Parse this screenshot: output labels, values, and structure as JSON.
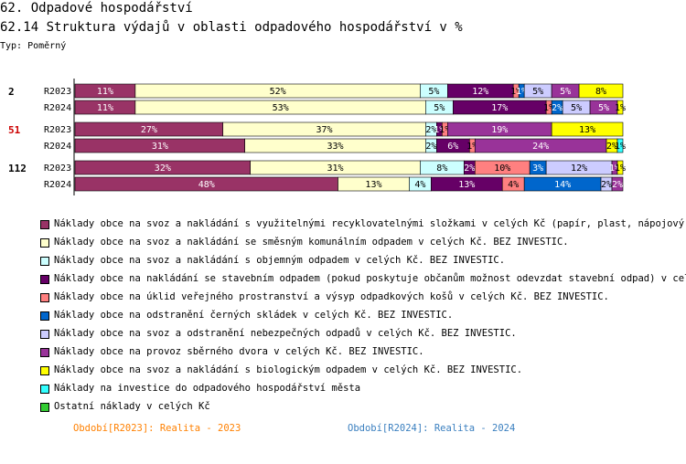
{
  "header": {
    "title": "62. Odpadové hospodářství",
    "subtitle": "62.14 Struktura výdajů v oblasti odpadového hospodářství v %",
    "type_label": "Typ: Poměrný"
  },
  "footer": {
    "period1": "Období[R2023]: Realita - 2023",
    "period2": "Období[R2024]: Realita - 2024",
    "period1_color": "#ff8000",
    "period2_color": "#3a7fbf"
  },
  "chart_data": {
    "type": "bar",
    "orientation": "horizontal",
    "stacked": "percent",
    "xlim": [
      0,
      100
    ],
    "legend_placement": "bottom",
    "groups": [
      {
        "label": "2",
        "label_color": "#000000",
        "rows": [
          {
            "label": "R2023",
            "values": [
              11,
              52,
              5,
              12,
              1,
              1,
              5,
              5,
              8,
              0,
              0
            ]
          },
          {
            "label": "R2024",
            "values": [
              11,
              53,
              5,
              17,
              1,
              2,
              5,
              5,
              1,
              0,
              0
            ]
          }
        ]
      },
      {
        "label": "51",
        "label_color": "#cc0000",
        "rows": [
          {
            "label": "R2023",
            "values": [
              27,
              37,
              2,
              1,
              1,
              0,
              0,
              19,
              13,
              0,
              0
            ]
          },
          {
            "label": "R2024",
            "values": [
              31,
              33,
              2,
              6,
              1,
              0,
              0,
              24,
              2,
              1,
              0
            ]
          }
        ]
      },
      {
        "label": "112",
        "label_color": "#000000",
        "rows": [
          {
            "label": "R2023",
            "values": [
              32,
              31,
              8,
              2,
              10,
              3,
              12,
              1,
              1,
              0,
              0
            ]
          },
          {
            "label": "R2024",
            "values": [
              48,
              13,
              4,
              13,
              4,
              14,
              2,
              2,
              0,
              0,
              0
            ]
          }
        ]
      }
    ],
    "series": [
      {
        "name": "Náklady obce na svoz a nakládání s využitelnými recyklovatelnými složkami v celých Kč (papír, plast, nápojový karto",
        "color": "#993366"
      },
      {
        "name": "Náklady obce na svoz a nakládání se směsným komunálním odpadem v celých Kč.  BEZ INVESTIC.",
        "color": "#ffffcc"
      },
      {
        "name": "Náklady obce na svoz a nakládání s objemným odpadem v celých Kč.  BEZ INVESTIC.",
        "color": "#ccffff"
      },
      {
        "name": "Náklady obce na nakládání se stavebním odpadem (pokud poskytuje občanům možnost odevzdat stavební odpad) v celých K",
        "color": "#660066"
      },
      {
        "name": "Náklady obce na úklid veřejného prostranství a výsyp odpadkových košů v celých Kč.  BEZ INVESTIC.",
        "color": "#ff8080"
      },
      {
        "name": "Náklady obce na odstranění černých skládek v celých Kč.  BEZ INVESTIC.",
        "color": "#0066cc"
      },
      {
        "name": "Náklady obce na svoz a odstranění nebezpečných odpadů v celých Kč.  BEZ INVESTIC.",
        "color": "#ccccff"
      },
      {
        "name": "Náklady obce na provoz sběrného dvora v celých Kč.  BEZ INVESTIC.",
        "color": "#993399"
      },
      {
        "name": "Náklady obce na svoz a nakládání s biologickým odpadem v celých Kč.  BEZ INVESTIC.",
        "color": "#ffff00"
      },
      {
        "name": "Náklady na investice do odpadového hospodářství města",
        "color": "#33ffff"
      },
      {
        "name": "Ostatní náklady v celých Kč",
        "color": "#33cc33"
      }
    ]
  }
}
